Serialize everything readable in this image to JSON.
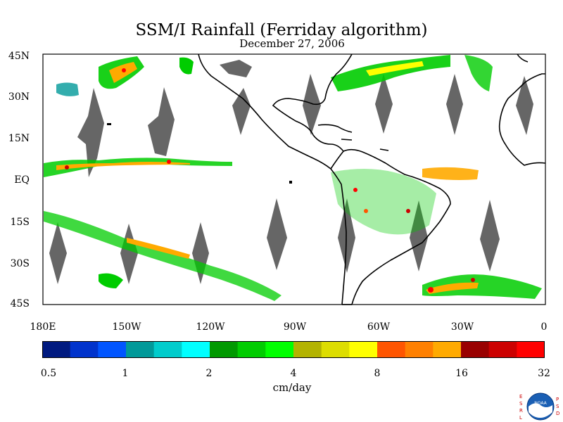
{
  "title": "SSM/I Rainfall (Ferriday algorithm)",
  "subtitle": "December 27, 2006",
  "lat_labels": [
    "45N",
    "30N",
    "15N",
    "EQ",
    "15S",
    "30S",
    "45S"
  ],
  "lon_labels": [
    "180E",
    "150W",
    "120W",
    "90W",
    "60W",
    "30W",
    "0"
  ],
  "colorbar": {
    "colors": [
      "#001a80",
      "#0033cc",
      "#0055ff",
      "#009999",
      "#00cccc",
      "#00ffff",
      "#009900",
      "#00cc00",
      "#00ff00",
      "#b3b300",
      "#dddd00",
      "#ffff00",
      "#ff5500",
      "#ff8000",
      "#ffaa00",
      "#990000",
      "#cc0000",
      "#ff0000"
    ],
    "tick_labels": [
      "0.5",
      "1",
      "2",
      "4",
      "8",
      "16",
      "32"
    ],
    "units": "cm/day"
  },
  "logo": {
    "left_letters": "ESRL",
    "right_letters": "PSD",
    "center_text": "NOAA"
  },
  "colors": {
    "coastline": "#000000",
    "swath_gap": "#666666",
    "background": "#ffffff"
  }
}
